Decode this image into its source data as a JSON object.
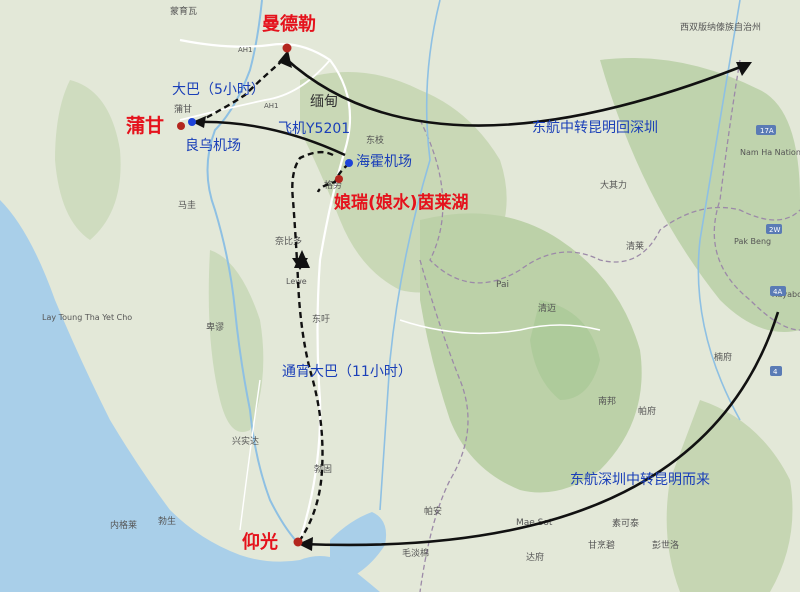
{
  "colors": {
    "land": "#dfe6d4",
    "mountain": "#c9d7b8",
    "forest": "#b6cfa4",
    "sea": "#a7cde9",
    "city_label": "#e5121c",
    "route_label": "#1a3fb8",
    "city_dot": "#b3261e",
    "airport_dot": "#1d43d8",
    "arrow": "#111111",
    "border": "#9a8aa6"
  },
  "labels": {
    "mandalay": "曼德勒",
    "bagan": "蒲甘",
    "nyaung_u_airport": "良乌机场",
    "heho_airport": "海霍机场",
    "inle": "娘瑞(娘水)茵莱湖",
    "yangon": "仰光",
    "bus_5h": "大巴（5小时）",
    "flight": "飞机Y5201",
    "night_bus": "通宵大巴（11小时）",
    "return_route": "东航中转昆明回深圳",
    "arrive_route": "东航深圳中转昆明而来",
    "myanmar": "缅甸"
  },
  "base_labels": [
    {
      "key": "b1",
      "text": "蒙育瓦"
    },
    {
      "key": "b2",
      "text": "AH1"
    },
    {
      "key": "b3",
      "text": "蒲甘"
    },
    {
      "key": "b4",
      "text": "AH1"
    },
    {
      "key": "b5",
      "text": "东枝"
    },
    {
      "key": "b6",
      "text": "格劳"
    },
    {
      "key": "b7",
      "text": "马圭"
    },
    {
      "key": "b8",
      "text": "Lay Toung Tha Yet Cho"
    },
    {
      "key": "b9",
      "text": "奈比多"
    },
    {
      "key": "b10",
      "text": "Lewe"
    },
    {
      "key": "b11",
      "text": "卑谬"
    },
    {
      "key": "b12",
      "text": "东吁"
    },
    {
      "key": "b13",
      "text": "兴实达"
    },
    {
      "key": "b14",
      "text": "勃固"
    },
    {
      "key": "b15",
      "text": "内格莱"
    },
    {
      "key": "b16",
      "text": "勃生"
    },
    {
      "key": "b17",
      "text": "毛淡棉"
    },
    {
      "key": "b18",
      "text": "帕安"
    },
    {
      "key": "b19",
      "text": "Mae Sot"
    },
    {
      "key": "b20",
      "text": "清迈"
    },
    {
      "key": "b21",
      "text": "南邦"
    },
    {
      "key": "b22",
      "text": "帕府"
    },
    {
      "key": "b23",
      "text": "楠府"
    },
    {
      "key": "b24",
      "text": "清莱"
    },
    {
      "key": "b25",
      "text": "西双版纳傣族自治州"
    },
    {
      "key": "b26",
      "text": "Nam Ha National Bio-Diversity"
    },
    {
      "key": "b27",
      "text": "Pak Beng"
    },
    {
      "key": "b28",
      "text": "Xayabo"
    },
    {
      "key": "b29",
      "text": "彭世洛"
    },
    {
      "key": "b30",
      "text": "素可泰"
    },
    {
      "key": "b31",
      "text": "甘烹碧"
    },
    {
      "key": "b32",
      "text": "达府"
    },
    {
      "key": "b33",
      "text": "Pai"
    },
    {
      "key": "b34",
      "text": "大其力"
    }
  ],
  "road_shields": [
    "AH1",
    "AH1",
    "17A",
    "2W",
    "4A",
    "4"
  ]
}
